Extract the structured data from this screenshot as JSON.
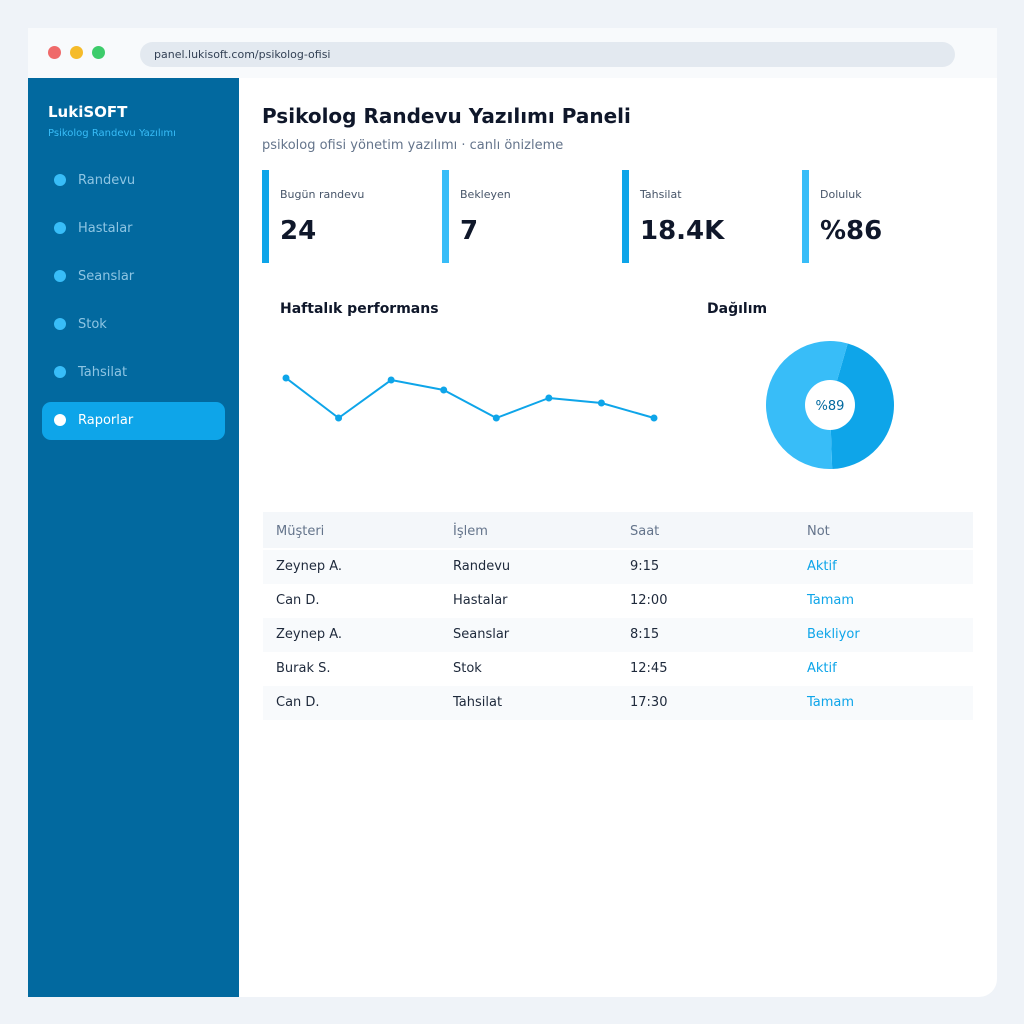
{
  "browser": {
    "url": "panel.lukisoft.com/psikolog-ofisi"
  },
  "sidebar": {
    "brand": "LukiSOFT",
    "brand_sub": "Psikolog Randevu Yazılımı",
    "items": [
      {
        "label": "Randevu",
        "active": false
      },
      {
        "label": "Hastalar",
        "active": false
      },
      {
        "label": "Seanslar",
        "active": false
      },
      {
        "label": "Stok",
        "active": false
      },
      {
        "label": "Tahsilat",
        "active": false
      },
      {
        "label": "Raporlar",
        "active": true
      }
    ]
  },
  "header": {
    "title": "Psikolog Randevu Yazılımı Paneli",
    "subtitle": "psikolog ofisi yönetim yazılımı · canlı önizleme"
  },
  "kpis": [
    {
      "label": "Bugün randevu",
      "value": "24"
    },
    {
      "label": "Bekleyen",
      "value": "7"
    },
    {
      "label": "Tahsilat",
      "value": "18.4K"
    },
    {
      "label": "Doluluk",
      "value": "%86"
    }
  ],
  "performance": {
    "title": "Haftalık performans"
  },
  "distribution": {
    "title": "Dağılım",
    "center_label": "%89"
  },
  "chart_data": [
    {
      "type": "line",
      "title": "Haftalık performans",
      "x": [
        1,
        2,
        3,
        4,
        5,
        6,
        7,
        8
      ],
      "values": [
        80,
        40,
        78,
        68,
        40,
        60,
        55,
        40
      ],
      "ylim": [
        0,
        100
      ],
      "grid": false,
      "color": "#0ea5e9"
    },
    {
      "type": "pie",
      "title": "Dağılım",
      "values": [
        45,
        55
      ],
      "colors": [
        "#0ea5e9",
        "#38bdf8"
      ],
      "center_label": "%89"
    }
  ],
  "table": {
    "headers": [
      "Müşteri",
      "İşlem",
      "Saat",
      "Not"
    ],
    "rows": [
      {
        "customer": "Zeynep A.",
        "action": "Randevu",
        "time": "9:15",
        "note": "Aktif"
      },
      {
        "customer": "Can D.",
        "action": "Hastalar",
        "time": "12:00",
        "note": "Tamam"
      },
      {
        "customer": "Zeynep A.",
        "action": "Seanslar",
        "time": "8:15",
        "note": "Bekliyor"
      },
      {
        "customer": "Burak S.",
        "action": "Stok",
        "time": "12:45",
        "note": "Aktif"
      },
      {
        "customer": "Can D.",
        "action": "Tahsilat",
        "time": "17:30",
        "note": "Tamam"
      }
    ]
  },
  "colors": {
    "sidebar_bg": "#02699f",
    "accent": "#0ea5e9",
    "accent_light": "#38bdf8",
    "text_dark": "#0f172a"
  }
}
